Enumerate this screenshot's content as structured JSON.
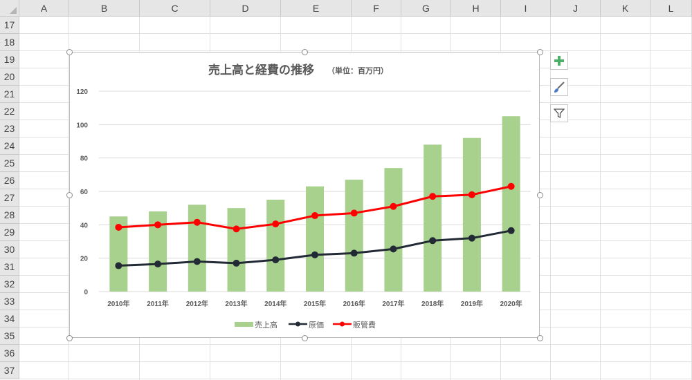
{
  "sheet": {
    "columns": [
      "A",
      "B",
      "C",
      "D",
      "E",
      "F",
      "G",
      "H",
      "I",
      "J",
      "K",
      "L"
    ],
    "rows": [
      "17",
      "18",
      "19",
      "20",
      "21",
      "22",
      "23",
      "24",
      "25",
      "26",
      "27",
      "28",
      "29",
      "30",
      "31",
      "32",
      "33",
      "34",
      "35",
      "36",
      "37"
    ]
  },
  "chart_data": {
    "type": "bar",
    "title": "売上高と経費の推移",
    "subtitle": "（単位：百万円）",
    "categories": [
      "2010年",
      "2011年",
      "2012年",
      "2013年",
      "2014年",
      "2015年",
      "2016年",
      "2017年",
      "2018年",
      "2019年",
      "2020年"
    ],
    "ylim": [
      0,
      120
    ],
    "yticks": [
      "0",
      "20",
      "40",
      "60",
      "80",
      "100",
      "120"
    ],
    "grid": true,
    "legend_position": "bottom",
    "series": [
      {
        "name": "売上高",
        "type": "bar",
        "color": "#a9d18e",
        "values": [
          45,
          48,
          52,
          50,
          55,
          63,
          67,
          74,
          88,
          92,
          105
        ]
      },
      {
        "name": "原価",
        "type": "line",
        "color": "#222a35",
        "values": [
          15.5,
          16.5,
          18,
          17,
          19,
          22,
          23,
          25.5,
          30.5,
          32,
          36.5
        ]
      },
      {
        "name": "販管費",
        "type": "line",
        "color": "#ff0000",
        "values": [
          38.5,
          40,
          41.5,
          37.5,
          40.5,
          45.5,
          47,
          51,
          57,
          58,
          63
        ]
      }
    ]
  },
  "side_buttons": {
    "add_icon": "plus-icon",
    "style_icon": "brush-icon",
    "filter_icon": "filter-icon"
  }
}
